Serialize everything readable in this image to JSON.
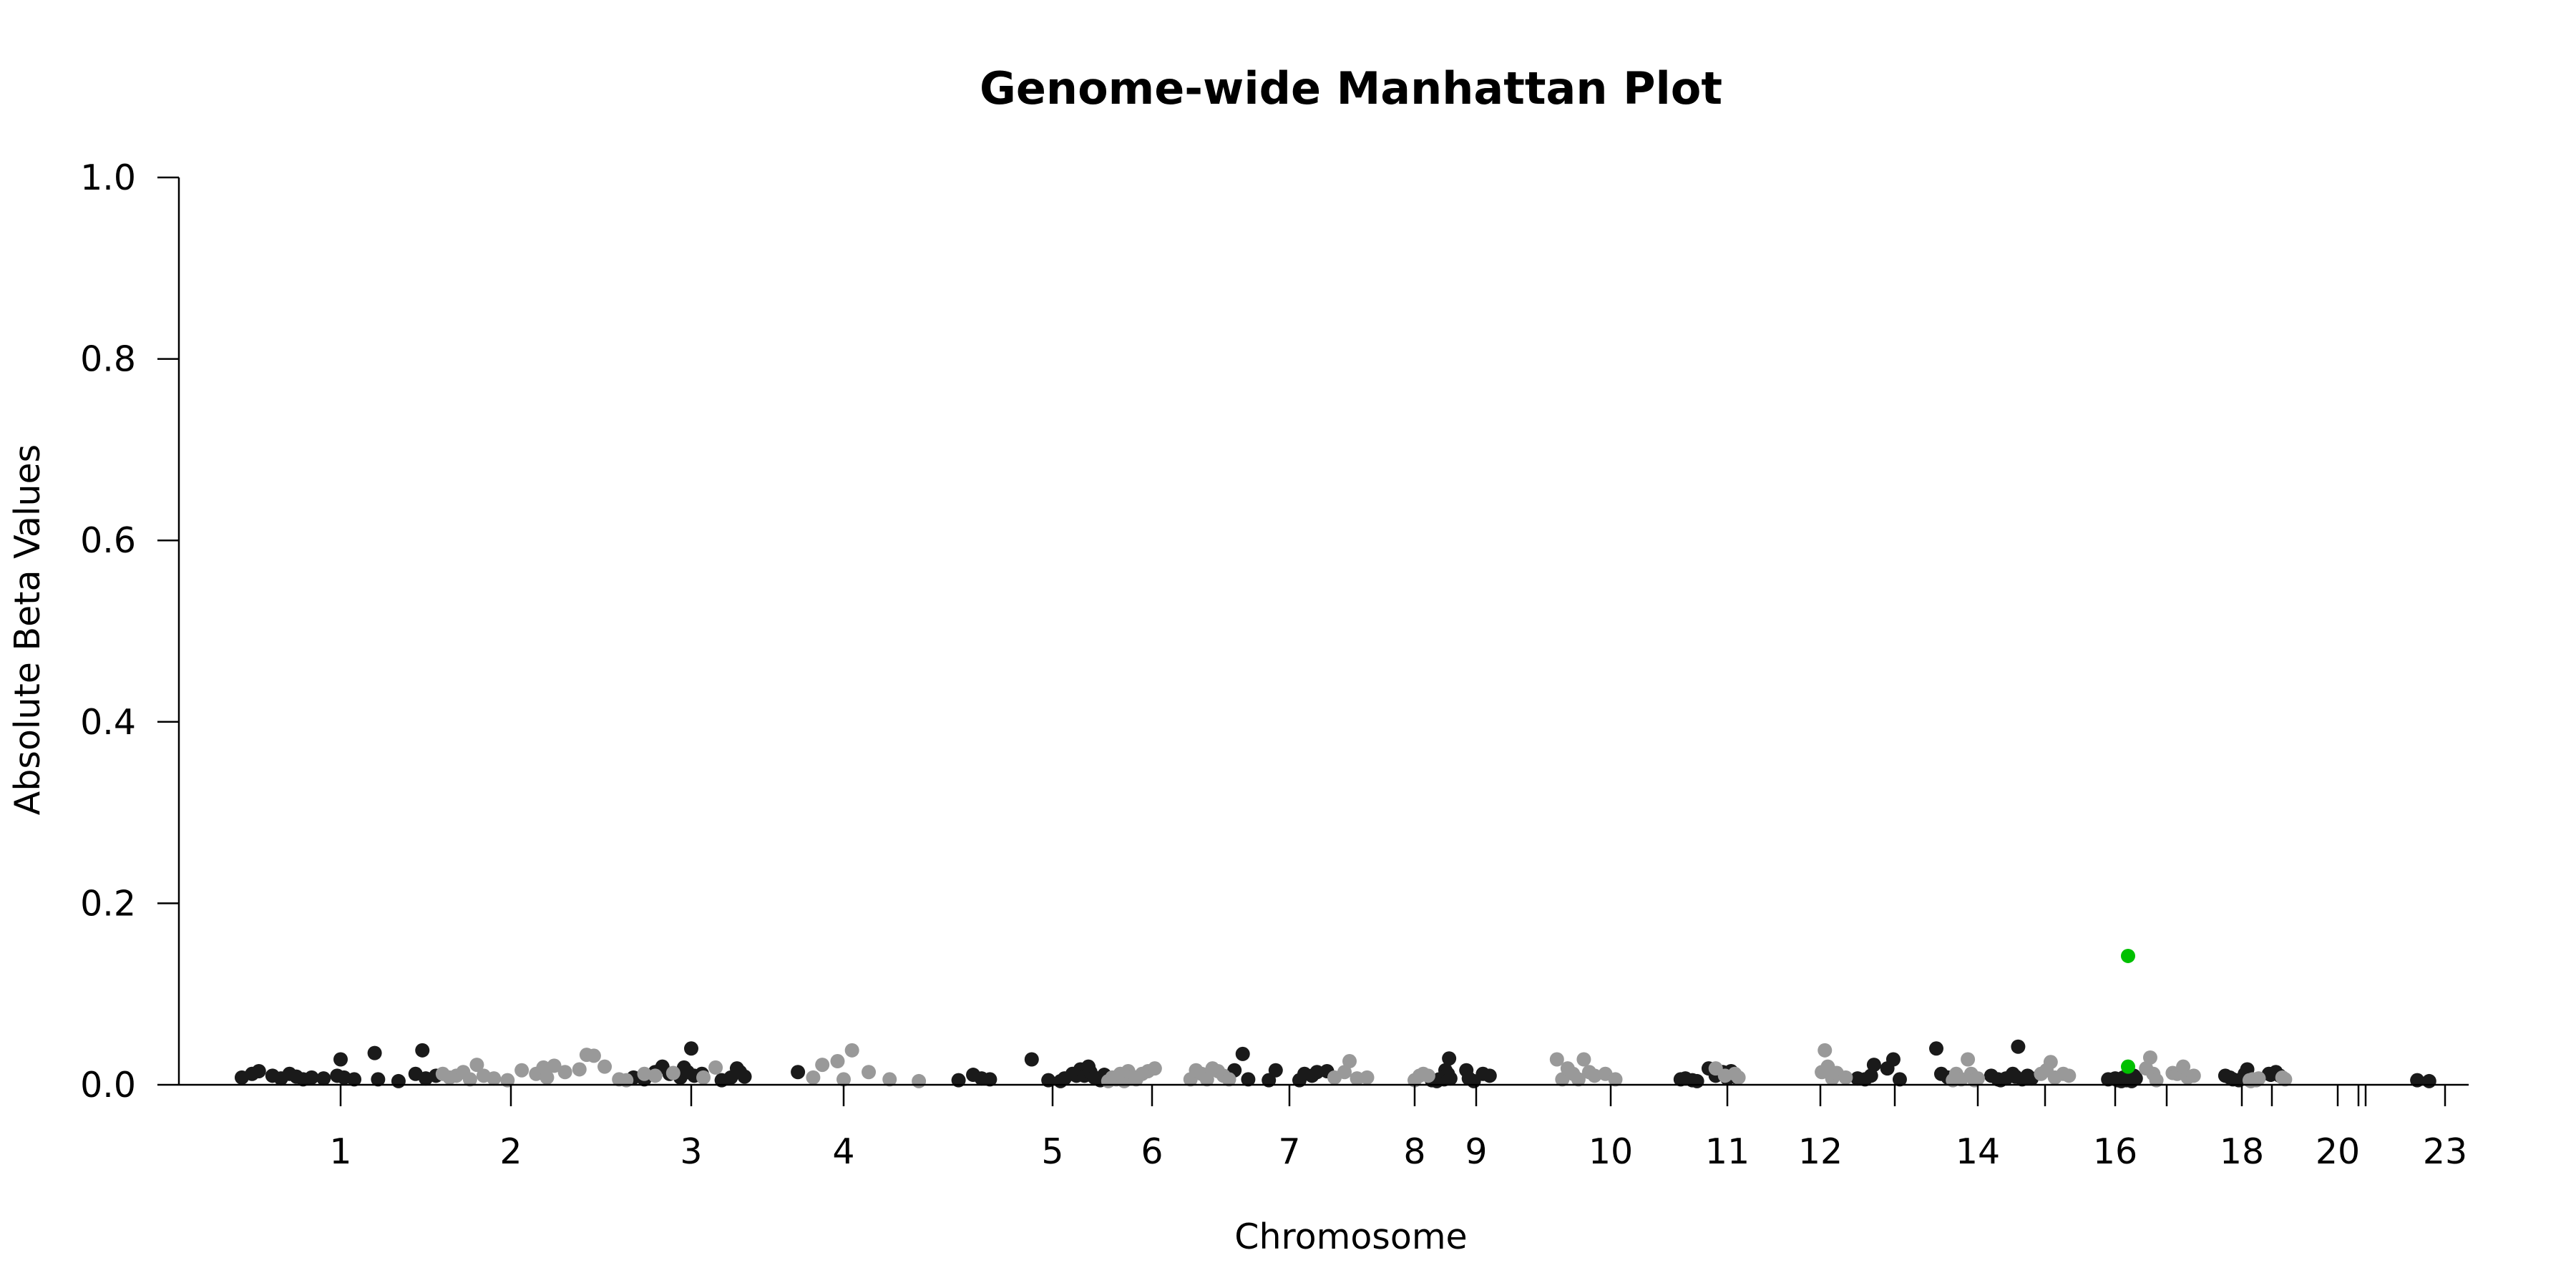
{
  "chart_data": {
    "type": "scatter",
    "title": "Genome-wide Manhattan Plot",
    "xlabel": "Chromosome",
    "ylabel": "Absolute Beta Values",
    "ylim": [
      0,
      1.0
    ],
    "yticks": [
      "0.0",
      "0.2",
      "0.4",
      "0.6",
      "0.8",
      "1.0"
    ],
    "grid": false,
    "colors": {
      "dark": "#1a1a1a",
      "light": "#999999",
      "highlight": "#00c000"
    },
    "chromosomes": [
      {
        "label": "1",
        "pos": 1
      },
      {
        "label": "2",
        "pos": 2
      },
      {
        "label": "3",
        "pos": 3
      },
      {
        "label": "4",
        "pos": 4
      },
      {
        "label": "5",
        "pos": 5
      },
      {
        "label": "6",
        "pos": 6
      },
      {
        "label": "7",
        "pos": 7
      },
      {
        "label": "8",
        "pos": 8
      },
      {
        "label": "9",
        "pos": 9
      },
      {
        "label": "10",
        "pos": 10
      },
      {
        "label": "11",
        "pos": 11
      },
      {
        "label": "12",
        "pos": 12
      },
      {
        "label": "",
        "pos": 13
      },
      {
        "label": "14",
        "pos": 14
      },
      {
        "label": "",
        "pos": 15
      },
      {
        "label": "16",
        "pos": 16
      },
      {
        "label": "",
        "pos": 17
      },
      {
        "label": "18",
        "pos": 18
      },
      {
        "label": "",
        "pos": 19
      },
      {
        "label": "20",
        "pos": 20
      },
      {
        "label": "",
        "pos": 21
      },
      {
        "label": "",
        "pos": 22
      },
      {
        "label": "23",
        "pos": 23
      }
    ],
    "series": [
      {
        "color": "dark",
        "points": [
          [
            0.42,
            0.008
          ],
          [
            0.48,
            0.012
          ],
          [
            0.52,
            0.015
          ],
          [
            0.6,
            0.01
          ],
          [
            0.65,
            0.007
          ],
          [
            0.7,
            0.012
          ],
          [
            0.74,
            0.009
          ],
          [
            0.78,
            0.006
          ],
          [
            0.83,
            0.008
          ],
          [
            0.9,
            0.007
          ],
          [
            0.98,
            0.01
          ],
          [
            1.0,
            0.028
          ],
          [
            1.02,
            0.008
          ],
          [
            1.08,
            0.006
          ],
          [
            1.2,
            0.035
          ],
          [
            1.22,
            0.006
          ],
          [
            1.34,
            0.004
          ],
          [
            1.44,
            0.012
          ],
          [
            1.48,
            0.038
          ],
          [
            1.5,
            0.007
          ],
          [
            1.56,
            0.01
          ],
          [
            2.68,
            0.008
          ],
          [
            2.74,
            0.006
          ],
          [
            2.8,
            0.014
          ],
          [
            2.84,
            0.02
          ],
          [
            2.88,
            0.012
          ],
          [
            2.94,
            0.008
          ],
          [
            2.96,
            0.019
          ],
          [
            2.98,
            0.014
          ],
          [
            3.0,
            0.04
          ],
          [
            3.02,
            0.01
          ],
          [
            3.07,
            0.012
          ],
          [
            3.2,
            0.005
          ],
          [
            3.26,
            0.008
          ],
          [
            3.3,
            0.018
          ],
          [
            3.32,
            0.014
          ],
          [
            3.35,
            0.009
          ],
          [
            3.7,
            0.014
          ],
          [
            4.55,
            0.005
          ],
          [
            4.62,
            0.011
          ],
          [
            4.66,
            0.007
          ],
          [
            4.7,
            0.006
          ],
          [
            4.9,
            0.028
          ],
          [
            4.98,
            0.005
          ],
          [
            5.08,
            0.004
          ],
          [
            5.12,
            0.007
          ],
          [
            5.2,
            0.012
          ],
          [
            5.24,
            0.01
          ],
          [
            5.28,
            0.017
          ],
          [
            5.32,
            0.01
          ],
          [
            5.36,
            0.02
          ],
          [
            5.38,
            0.014
          ],
          [
            5.42,
            0.008
          ],
          [
            5.48,
            0.005
          ],
          [
            5.52,
            0.011
          ],
          [
            6.6,
            0.016
          ],
          [
            6.66,
            0.034
          ],
          [
            6.7,
            0.006
          ],
          [
            6.85,
            0.005
          ],
          [
            6.9,
            0.016
          ],
          [
            7.08,
            0.005
          ],
          [
            7.12,
            0.012
          ],
          [
            7.18,
            0.01
          ],
          [
            7.22,
            0.014
          ],
          [
            7.3,
            0.015
          ],
          [
            8.28,
            0.005
          ],
          [
            8.36,
            0.004
          ],
          [
            8.4,
            0.006
          ],
          [
            8.48,
            0.006
          ],
          [
            8.5,
            0.016
          ],
          [
            8.54,
            0.012
          ],
          [
            8.56,
            0.029
          ],
          [
            8.58,
            0.007
          ],
          [
            8.84,
            0.016
          ],
          [
            8.88,
            0.007
          ],
          [
            8.96,
            0.004
          ],
          [
            9.05,
            0.012
          ],
          [
            9.1,
            0.01
          ],
          [
            10.6,
            0.006
          ],
          [
            10.64,
            0.007
          ],
          [
            10.7,
            0.005
          ],
          [
            10.74,
            0.004
          ],
          [
            10.84,
            0.018
          ],
          [
            10.9,
            0.01
          ],
          [
            10.96,
            0.014
          ],
          [
            11.0,
            0.007
          ],
          [
            11.04,
            0.015
          ],
          [
            11.1,
            0.008
          ],
          [
            12.5,
            0.007
          ],
          [
            12.6,
            0.006
          ],
          [
            12.68,
            0.01
          ],
          [
            12.72,
            0.022
          ],
          [
            12.9,
            0.018
          ],
          [
            12.98,
            0.028
          ],
          [
            13.06,
            0.006
          ],
          [
            13.5,
            0.04
          ],
          [
            13.56,
            0.012
          ],
          [
            13.64,
            0.008
          ],
          [
            14.2,
            0.01
          ],
          [
            14.3,
            0.006
          ],
          [
            14.34,
            0.005
          ],
          [
            14.42,
            0.007
          ],
          [
            14.52,
            0.012
          ],
          [
            14.56,
            0.009
          ],
          [
            14.6,
            0.042
          ],
          [
            14.66,
            0.006
          ],
          [
            14.74,
            0.01
          ],
          [
            14.8,
            0.007
          ],
          [
            15.9,
            0.006
          ],
          [
            16.0,
            0.007
          ],
          [
            16.05,
            0.005
          ],
          [
            16.12,
            0.004
          ],
          [
            16.16,
            0.008
          ],
          [
            16.22,
            0.005
          ],
          [
            16.28,
            0.01
          ],
          [
            16.32,
            0.004
          ],
          [
            16.36,
            0.01
          ],
          [
            16.4,
            0.007
          ],
          [
            17.78,
            0.01
          ],
          [
            17.84,
            0.008
          ],
          [
            17.88,
            0.006
          ],
          [
            17.96,
            0.005
          ],
          [
            18.1,
            0.012
          ],
          [
            18.18,
            0.017
          ],
          [
            18.24,
            0.006
          ],
          [
            18.9,
            0.012
          ],
          [
            18.96,
            0.011
          ],
          [
            19.06,
            0.014
          ],
          [
            19.12,
            0.01
          ],
          [
            22.65,
            0.005
          ],
          [
            22.8,
            0.004
          ]
        ]
      },
      {
        "color": "light",
        "points": [
          [
            1.6,
            0.012
          ],
          [
            1.64,
            0.008
          ],
          [
            1.68,
            0.01
          ],
          [
            1.72,
            0.014
          ],
          [
            1.76,
            0.006
          ],
          [
            1.8,
            0.022
          ],
          [
            1.84,
            0.01
          ],
          [
            1.9,
            0.007
          ],
          [
            1.98,
            0.005
          ],
          [
            2.06,
            0.016
          ],
          [
            2.14,
            0.012
          ],
          [
            2.18,
            0.019
          ],
          [
            2.2,
            0.008
          ],
          [
            2.24,
            0.021
          ],
          [
            2.3,
            0.014
          ],
          [
            2.38,
            0.017
          ],
          [
            2.42,
            0.033
          ],
          [
            2.46,
            0.032
          ],
          [
            2.52,
            0.02
          ],
          [
            2.6,
            0.006
          ],
          [
            2.64,
            0.005
          ],
          [
            2.74,
            0.012
          ],
          [
            2.8,
            0.01
          ],
          [
            2.9,
            0.013
          ],
          [
            3.08,
            0.008
          ],
          [
            3.16,
            0.019
          ],
          [
            3.8,
            0.008
          ],
          [
            3.86,
            0.022
          ],
          [
            3.96,
            0.026
          ],
          [
            4.0,
            0.006
          ],
          [
            4.04,
            0.038
          ],
          [
            4.12,
            0.014
          ],
          [
            4.22,
            0.006
          ],
          [
            4.36,
            0.004
          ],
          [
            5.56,
            0.004
          ],
          [
            5.6,
            0.008
          ],
          [
            5.64,
            0.006
          ],
          [
            5.68,
            0.012
          ],
          [
            5.72,
            0.004
          ],
          [
            5.76,
            0.015
          ],
          [
            5.8,
            0.009
          ],
          [
            5.84,
            0.006
          ],
          [
            5.9,
            0.012
          ],
          [
            5.96,
            0.015
          ],
          [
            6.02,
            0.018
          ],
          [
            6.28,
            0.006
          ],
          [
            6.32,
            0.016
          ],
          [
            6.36,
            0.012
          ],
          [
            6.4,
            0.006
          ],
          [
            6.44,
            0.018
          ],
          [
            6.48,
            0.015
          ],
          [
            6.52,
            0.01
          ],
          [
            6.56,
            0.006
          ],
          [
            7.36,
            0.008
          ],
          [
            7.44,
            0.014
          ],
          [
            7.48,
            0.026
          ],
          [
            7.54,
            0.007
          ],
          [
            7.62,
            0.008
          ],
          [
            8.0,
            0.005
          ],
          [
            8.08,
            0.01
          ],
          [
            8.14,
            0.012
          ],
          [
            8.22,
            0.01
          ],
          [
            9.6,
            0.028
          ],
          [
            9.64,
            0.006
          ],
          [
            9.68,
            0.018
          ],
          [
            9.72,
            0.012
          ],
          [
            9.76,
            0.006
          ],
          [
            9.8,
            0.028
          ],
          [
            9.84,
            0.014
          ],
          [
            9.88,
            0.01
          ],
          [
            9.96,
            0.012
          ],
          [
            10.04,
            0.006
          ],
          [
            10.9,
            0.018
          ],
          [
            10.98,
            0.01
          ],
          [
            11.08,
            0.012
          ],
          [
            11.12,
            0.008
          ],
          [
            12.02,
            0.014
          ],
          [
            12.06,
            0.038
          ],
          [
            12.1,
            0.02
          ],
          [
            12.16,
            0.007
          ],
          [
            12.22,
            0.013
          ],
          [
            12.34,
            0.008
          ],
          [
            13.7,
            0.005
          ],
          [
            13.74,
            0.012
          ],
          [
            13.8,
            0.006
          ],
          [
            13.88,
            0.028
          ],
          [
            13.92,
            0.012
          ],
          [
            13.96,
            0.005
          ],
          [
            14.0,
            0.007
          ],
          [
            14.94,
            0.012
          ],
          [
            15.02,
            0.016
          ],
          [
            15.08,
            0.025
          ],
          [
            15.14,
            0.008
          ],
          [
            15.26,
            0.012
          ],
          [
            15.34,
            0.01
          ],
          [
            16.6,
            0.018
          ],
          [
            16.68,
            0.03
          ],
          [
            16.74,
            0.012
          ],
          [
            16.8,
            0.005
          ],
          [
            17.08,
            0.013
          ],
          [
            17.14,
            0.012
          ],
          [
            17.22,
            0.02
          ],
          [
            17.28,
            0.008
          ],
          [
            17.36,
            0.01
          ],
          [
            18.26,
            0.005
          ],
          [
            18.3,
            0.004
          ],
          [
            18.36,
            0.006
          ],
          [
            18.48,
            0.005
          ],
          [
            18.56,
            0.007
          ],
          [
            19.16,
            0.008
          ],
          [
            19.2,
            0.006
          ]
        ]
      },
      {
        "color": "highlight",
        "points": [
          [
            16.25,
            0.142
          ],
          [
            16.25,
            0.02
          ]
        ]
      }
    ]
  }
}
